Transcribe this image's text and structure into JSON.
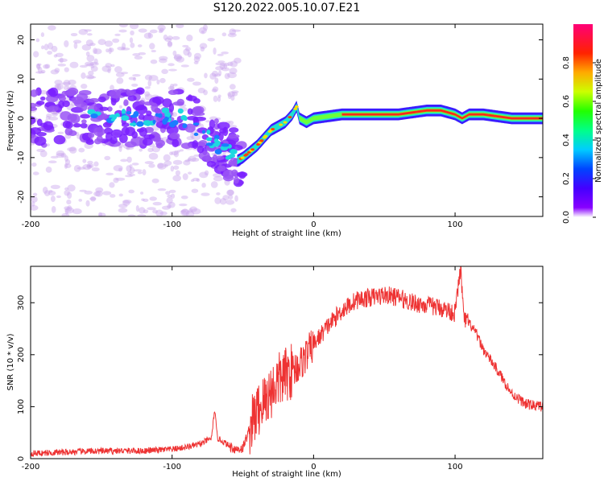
{
  "figure_title": "S120.2022.005.10.07.E21",
  "chart_data": [
    {
      "type": "heatmap",
      "title": "",
      "xlabel": "Height of straight line (km)",
      "ylabel": "Frequency (Hz)",
      "xlim": [
        -200,
        162
      ],
      "ylim": [
        -25,
        24
      ],
      "xticks": [
        -200,
        -100,
        0,
        100
      ],
      "yticks": [
        -20,
        -10,
        0,
        10,
        20
      ],
      "colorbar": {
        "label": "Normalized spectral amplitude",
        "range": [
          0,
          1
        ],
        "ticks": [
          0.0,
          0.2,
          0.4,
          0.6,
          0.8
        ],
        "colormap": "rainbow (purple-blue-cyan-green-yellow-red-pink)"
      },
      "ridge": {
        "description": "dominant frequency ridge vs height",
        "x": [
          -200,
          -150,
          -100,
          -90,
          -80,
          -70,
          -63,
          -55,
          -55,
          -50,
          -40,
          -30,
          -20,
          -15,
          -12,
          -10,
          -5,
          0,
          20,
          60,
          80,
          90,
          100,
          105,
          110,
          120,
          140,
          162
        ],
        "y": [
          0,
          0,
          0,
          0,
          -3,
          -6,
          -8,
          -9,
          -11,
          -10,
          -7,
          -3,
          -1,
          1,
          3,
          0,
          -1,
          0,
          1,
          1,
          2,
          2,
          1,
          0,
          1,
          1,
          0,
          0
        ]
      }
    },
    {
      "type": "line",
      "title": "",
      "xlabel": "Height of straight line (km)",
      "ylabel": "SNR (10 * v/v)",
      "xlim": [
        -200,
        162
      ],
      "ylim": [
        0,
        370
      ],
      "xticks": [
        -200,
        -100,
        0,
        100
      ],
      "yticks": [
        0,
        100,
        200,
        300
      ],
      "color": "#ee3333",
      "grid": false,
      "x": [
        -200,
        -180,
        -160,
        -140,
        -120,
        -100,
        -90,
        -80,
        -72,
        -70,
        -68,
        -60,
        -55,
        -50,
        -45,
        -40,
        -35,
        -30,
        -25,
        -20,
        -15,
        -10,
        -5,
        0,
        10,
        20,
        30,
        40,
        50,
        60,
        70,
        80,
        90,
        100,
        104,
        106,
        110,
        115,
        120,
        130,
        140,
        150,
        162
      ],
      "y": [
        10,
        12,
        14,
        15,
        15,
        18,
        22,
        28,
        40,
        95,
        40,
        25,
        18,
        20,
        60,
        90,
        110,
        130,
        150,
        160,
        170,
        180,
        200,
        220,
        255,
        285,
        305,
        310,
        315,
        310,
        300,
        295,
        290,
        280,
        370,
        270,
        260,
        240,
        210,
        170,
        125,
        105,
        100
      ]
    }
  ]
}
